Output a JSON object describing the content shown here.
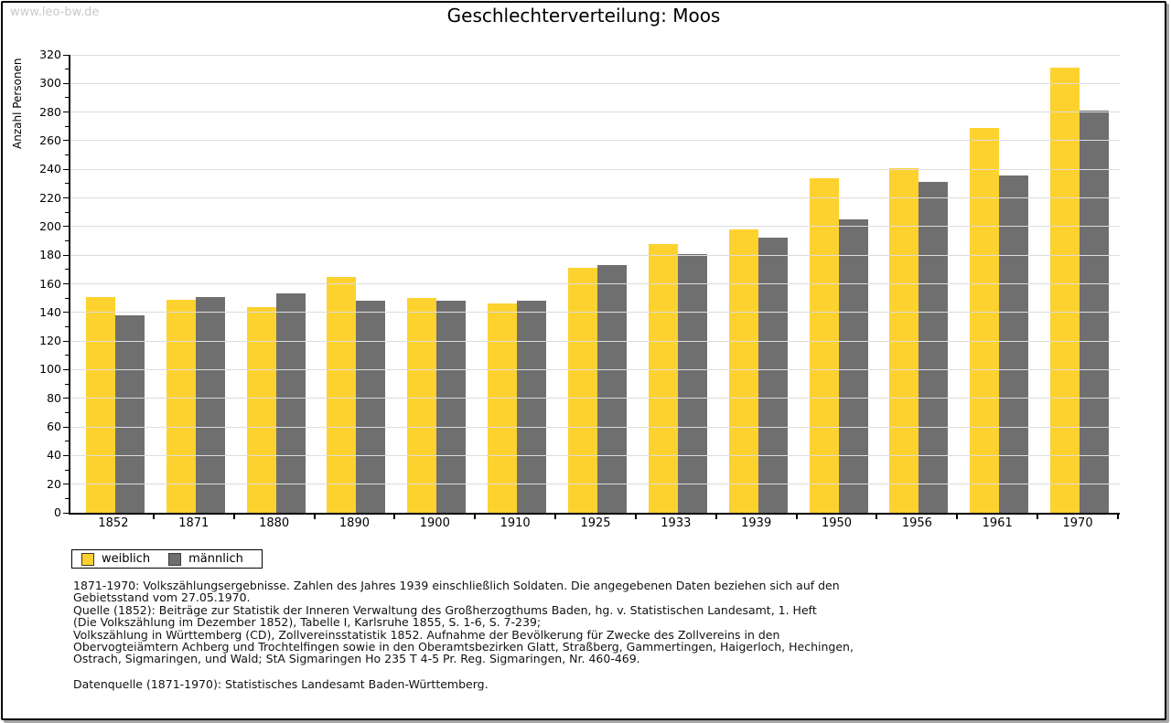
{
  "watermark": "www.leo-bw.de",
  "title": "Geschlechterverteilung: Moos",
  "y_axis_title": "Anzahl Personen",
  "colors": {
    "weiblich": "#fdd22e",
    "maennlich": "#6f6f6f",
    "gridline": "#dcdcdc",
    "axis": "#000000",
    "watermark": "#c9c9c9"
  },
  "chart_data": {
    "type": "bar",
    "title": "Geschlechterverteilung: Moos",
    "categories": [
      "1852",
      "1871",
      "1880",
      "1890",
      "1900",
      "1910",
      "1925",
      "1933",
      "1939",
      "1950",
      "1956",
      "1961",
      "1970"
    ],
    "series": [
      {
        "name": "weiblich",
        "color": "#fdd22e",
        "values": [
          151,
          149,
          144,
          165,
          150,
          146,
          171,
          188,
          198,
          234,
          241,
          269,
          311
        ]
      },
      {
        "name": "männlich",
        "color": "#6f6f6f",
        "values": [
          138,
          151,
          153,
          148,
          148,
          148,
          173,
          181,
          192,
          205,
          231,
          236,
          281
        ]
      }
    ],
    "xlabel": "",
    "ylabel": "Anzahl Personen",
    "ylim": [
      0,
      320
    ],
    "y_major_tick_step": 20,
    "y_minor_tick_step": 10,
    "grid": true,
    "legend_position": "bottom-left"
  },
  "legend": {
    "items": [
      {
        "label": "weiblich",
        "color": "#fdd22e"
      },
      {
        "label": "männlich",
        "color": "#6f6f6f"
      }
    ]
  },
  "footnotes": {
    "lines": [
      "1871-1970: Volkszählungsergebnisse. Zahlen des Jahres 1939 einschließlich Soldaten. Die angegebenen Daten beziehen sich auf den",
      "Gebietsstand vom 27.05.1970.",
      "Quelle (1852): Beiträge zur Statistik der Inneren Verwaltung des Großherzogthums Baden, hg. v. Statistischen Landesamt, 1. Heft",
      "(Die Volkszählung im Dezember 1852), Tabelle I, Karlsruhe 1855, S. 1-6, S. 7-239;",
      "Volkszählung in Württemberg (CD), Zollvereinsstatistik 1852. Aufnahme der Bevölkerung für Zwecke des Zollvereins in den",
      "Obervogteiämtern Achberg und Trochtelfingen sowie in den Oberamtsbezirken Glatt, Straßberg, Gammertingen, Haigerloch, Hechingen,",
      "Ostrach, Sigmaringen, und Wald; StA Sigmaringen Ho 235 T 4-5 Pr. Reg. Sigmaringen, Nr. 460-469."
    ],
    "datasource": "Datenquelle (1871-1970): Statistisches Landesamt Baden-Württemberg."
  }
}
